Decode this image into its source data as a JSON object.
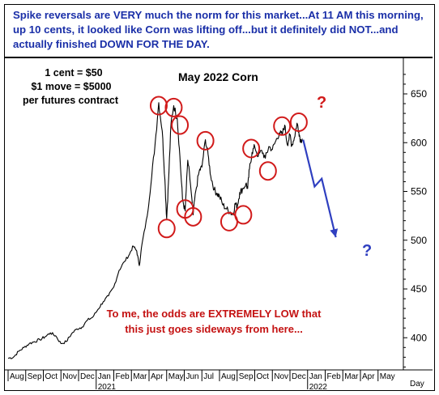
{
  "banner": {
    "segments": [
      {
        "text": "Spike reversals are ",
        "strong": false
      },
      {
        "text": "VERY",
        "strong": true
      },
      {
        "text": " much the norm for this market...At 11 AM this morning, up 10 cents, it looked like Corn was lifting off...but it definitely did ",
        "strong": false
      },
      {
        "text": "NOT",
        "strong": true
      },
      {
        "text": "...and actually finished ",
        "strong": false
      },
      {
        "text": "DOWN FOR THE DAY",
        "strong": true
      },
      {
        "text": ".",
        "strong": false
      }
    ]
  },
  "notes": {
    "line1": "1 cent = $50",
    "line2": "$1 move = $5000",
    "line3": "per futures contract"
  },
  "warning": {
    "line1": "To me, the odds are EXTREMELY LOW that",
    "line2": "this just goes sideways from here..."
  },
  "qmarks": {
    "top": "?",
    "bottom": "?"
  },
  "colors": {
    "banner_text": "#1a2fa8",
    "price_line": "#000000",
    "circles": "#d11a1a",
    "projection": "#2f3fc0",
    "warning_text": "#c41212"
  },
  "chart_data": {
    "type": "line",
    "title": "May 2022 Corn",
    "xlabel": "Day",
    "ylabel": "",
    "y_axis_side": "right",
    "ylim": [
      360,
      680
    ],
    "yticks": [
      400,
      450,
      500,
      550,
      600,
      650
    ],
    "x_months": [
      "Aug",
      "Sep",
      "Oct",
      "Nov",
      "Dec",
      "Jan",
      "Feb",
      "Mar",
      "Apr",
      "May",
      "Jun",
      "Jul",
      "Aug",
      "Sep",
      "Oct",
      "Nov",
      "Dec",
      "Jan",
      "Feb",
      "Mar",
      "Apr",
      "May"
    ],
    "x_years": [
      {
        "label": "2021",
        "month_index": 5
      },
      {
        "label": "2022",
        "month_index": 17
      }
    ],
    "series": [
      {
        "points": [
          [
            0.0,
            379
          ],
          [
            0.3,
            380
          ],
          [
            0.6,
            386
          ],
          [
            0.9,
            390
          ],
          [
            1.2,
            394
          ],
          [
            1.5,
            396
          ],
          [
            1.8,
            398
          ],
          [
            2.1,
            401
          ],
          [
            2.4,
            405
          ],
          [
            2.7,
            402
          ],
          [
            3.0,
            394
          ],
          [
            3.3,
            396
          ],
          [
            3.6,
            404
          ],
          [
            3.9,
            409
          ],
          [
            4.2,
            411
          ],
          [
            4.5,
            418
          ],
          [
            4.8,
            421
          ],
          [
            5.1,
            429
          ],
          [
            5.4,
            437
          ],
          [
            5.7,
            443
          ],
          [
            6.0,
            452
          ],
          [
            6.3,
            469
          ],
          [
            6.6,
            478
          ],
          [
            6.9,
            486
          ],
          [
            7.1,
            494
          ],
          [
            7.3,
            489
          ],
          [
            7.45,
            474
          ],
          [
            7.6,
            496
          ],
          [
            7.9,
            525
          ],
          [
            8.1,
            556
          ],
          [
            8.35,
            600
          ],
          [
            8.55,
            641
          ],
          [
            8.75,
            612
          ],
          [
            8.9,
            562
          ],
          [
            9.0,
            522
          ],
          [
            9.1,
            558
          ],
          [
            9.25,
            620
          ],
          [
            9.4,
            638
          ],
          [
            9.6,
            625
          ],
          [
            9.75,
            586
          ],
          [
            9.9,
            542
          ],
          [
            10.05,
            530
          ],
          [
            10.2,
            582
          ],
          [
            10.35,
            558
          ],
          [
            10.5,
            526
          ],
          [
            10.65,
            550
          ],
          [
            10.85,
            571
          ],
          [
            11.0,
            575
          ],
          [
            11.2,
            603
          ],
          [
            11.35,
            588
          ],
          [
            11.5,
            566
          ],
          [
            11.7,
            552
          ],
          [
            11.85,
            548
          ],
          [
            12.0,
            545
          ],
          [
            12.2,
            536
          ],
          [
            12.4,
            532
          ],
          [
            12.6,
            529
          ],
          [
            12.75,
            526
          ],
          [
            12.9,
            538
          ],
          [
            13.0,
            534
          ],
          [
            13.15,
            549
          ],
          [
            13.3,
            552
          ],
          [
            13.5,
            558
          ],
          [
            13.6,
            553
          ],
          [
            13.7,
            573
          ],
          [
            13.85,
            590
          ],
          [
            14.0,
            596
          ],
          [
            14.2,
            586
          ],
          [
            14.4,
            592
          ],
          [
            14.6,
            584
          ],
          [
            14.8,
            596
          ],
          [
            15.0,
            593
          ],
          [
            15.2,
            602
          ],
          [
            15.4,
            610
          ],
          [
            15.55,
            608
          ],
          [
            15.7,
            618
          ],
          [
            15.85,
            598
          ],
          [
            16.0,
            608
          ],
          [
            16.1,
            597
          ],
          [
            16.25,
            605
          ],
          [
            16.4,
            620
          ],
          [
            16.5,
            612
          ],
          [
            16.6,
            602
          ],
          [
            16.7,
            604
          ]
        ]
      },
      {
        "name": "projection",
        "points": [
          [
            16.75,
            603
          ],
          [
            17.4,
            555
          ],
          [
            17.8,
            563
          ],
          [
            18.6,
            503
          ]
        ]
      }
    ],
    "highlighted_extremes": [
      {
        "x": 8.55,
        "y": 638,
        "kind": "high"
      },
      {
        "x": 9.0,
        "y": 512,
        "kind": "low"
      },
      {
        "x": 9.4,
        "y": 636,
        "kind": "high"
      },
      {
        "x": 9.75,
        "y": 618,
        "kind": "high"
      },
      {
        "x": 10.05,
        "y": 532,
        "kind": "low"
      },
      {
        "x": 10.5,
        "y": 524,
        "kind": "low"
      },
      {
        "x": 11.2,
        "y": 602,
        "kind": "high"
      },
      {
        "x": 12.55,
        "y": 519,
        "kind": "low"
      },
      {
        "x": 13.35,
        "y": 526,
        "kind": "low"
      },
      {
        "x": 13.8,
        "y": 594,
        "kind": "high"
      },
      {
        "x": 14.75,
        "y": 571,
        "kind": "low"
      },
      {
        "x": 15.55,
        "y": 617,
        "kind": "high"
      },
      {
        "x": 16.5,
        "y": 621,
        "kind": "high"
      }
    ],
    "grid": false
  }
}
